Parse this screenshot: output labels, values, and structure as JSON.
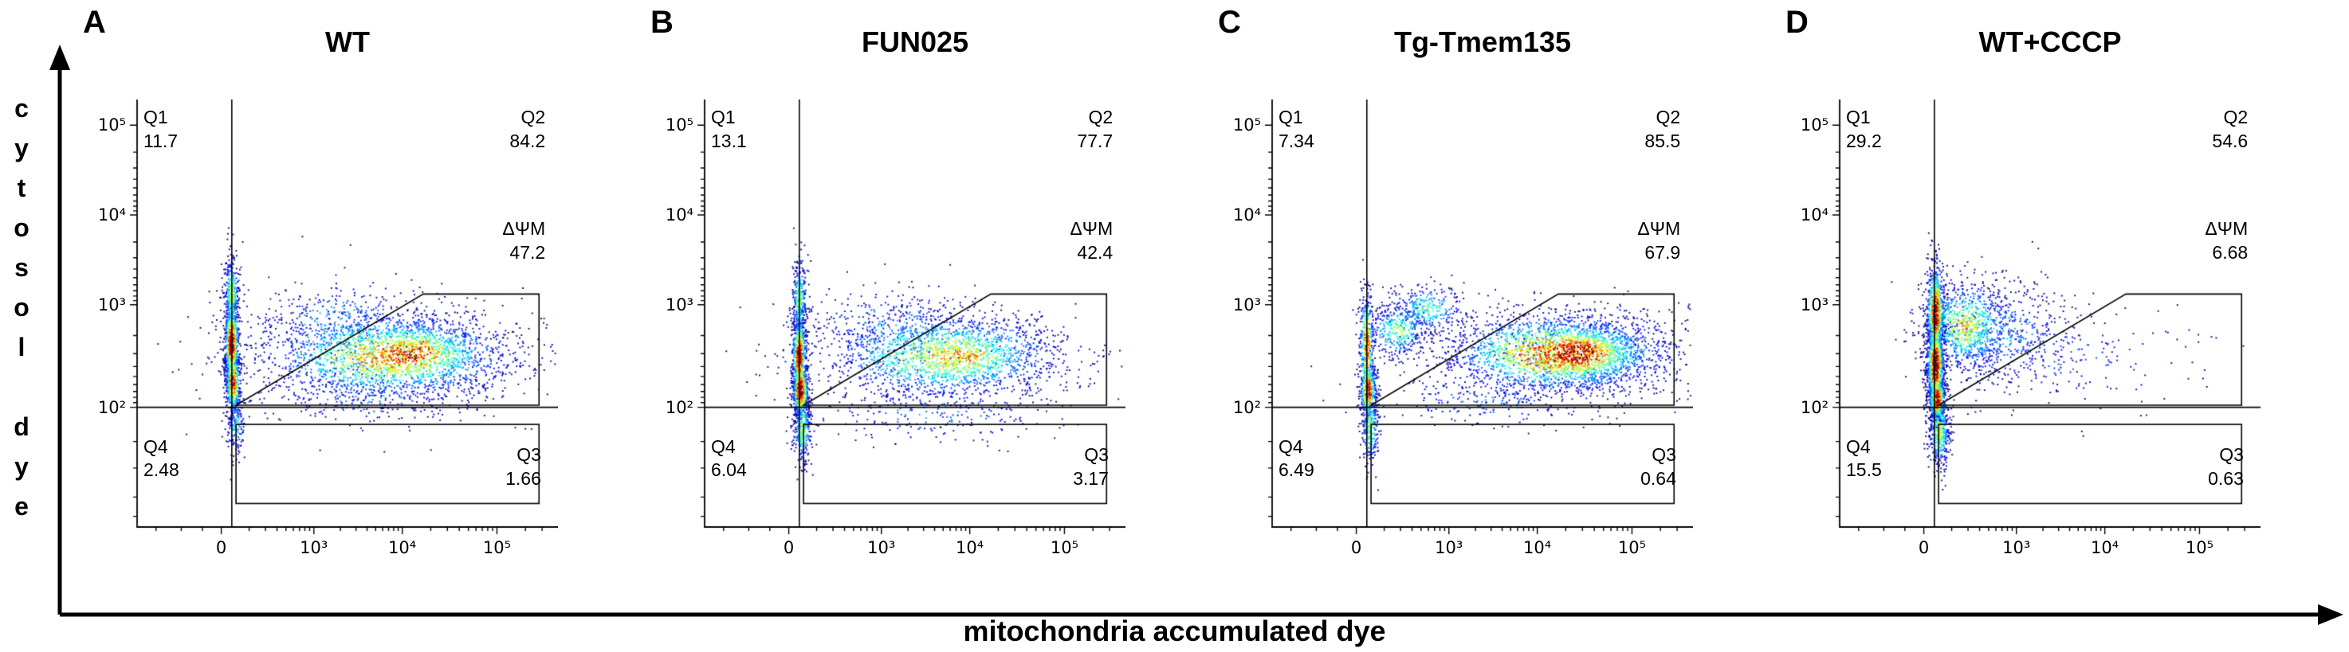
{
  "figure": {
    "x_axis_label": "mitochondria accumulated dye",
    "y_axis_label": "cytosol dye"
  },
  "chart_data": {
    "type": "scatter",
    "subtype": "flow-cytometry-pseudocolor-density",
    "title": "",
    "xlabel": "mitochondria accumulated dye",
    "ylabel": "cytosol dye",
    "x_scale": "biexponential log: 0, 10^3, 10^4, 10^5",
    "y_scale": "biexponential log: 10^2, 10^3, 10^4, 10^5",
    "legend_position": "none",
    "grid": false,
    "axes": {
      "x_ticks": [
        "0",
        "10³",
        "10⁴",
        "10⁵"
      ],
      "y_ticks": [
        "10⁵",
        "10⁴",
        "10³",
        "10²"
      ],
      "x_tick_pos": [
        0.2,
        0.42,
        0.63,
        0.855
      ],
      "y_tick_pos": [
        0.06,
        0.27,
        0.48,
        0.72
      ]
    },
    "gates": {
      "vline_x": 0.225,
      "hline_y": 0.72,
      "psi_gate_polygon": [
        [
          0.235,
          0.715
        ],
        [
          0.68,
          0.455
        ],
        [
          0.955,
          0.455
        ],
        [
          0.955,
          0.715
        ]
      ],
      "q3_box": [
        0.235,
        0.76,
        0.955,
        0.945
      ]
    },
    "panels": [
      {
        "letter": "A",
        "title": "WT",
        "q1": {
          "label": "Q1",
          "value": "11.7"
        },
        "q2": {
          "label": "Q2",
          "value": "84.2"
        },
        "q3": {
          "label": "Q3",
          "value": "1.66"
        },
        "q4": {
          "label": "Q4",
          "value": "2.48"
        },
        "psi_gate": {
          "label": "ΔΨM",
          "value": "47.2"
        },
        "clusters": [
          {
            "n": 350,
            "cx": 0.225,
            "cy": 0.46,
            "sx": 0.009,
            "sy": 0.05,
            "heat": 0.55
          },
          {
            "n": 700,
            "cx": 0.225,
            "cy": 0.57,
            "sx": 0.009,
            "sy": 0.05,
            "heat": 0.95
          },
          {
            "n": 500,
            "cx": 0.228,
            "cy": 0.66,
            "sx": 0.01,
            "sy": 0.04,
            "heat": 0.8
          },
          {
            "n": 150,
            "cx": 0.235,
            "cy": 0.76,
            "sx": 0.012,
            "sy": 0.04,
            "heat": 0.35
          },
          {
            "n": 2200,
            "cx": 0.6,
            "cy": 0.6,
            "sx": 0.16,
            "sy": 0.055,
            "heat": 0.7
          },
          {
            "n": 650,
            "cx": 0.65,
            "cy": 0.595,
            "sx": 0.09,
            "sy": 0.04,
            "heat": 0.9
          },
          {
            "n": 280,
            "cx": 0.48,
            "cy": 0.52,
            "sx": 0.13,
            "sy": 0.05,
            "heat": 0.3
          },
          {
            "n": 160,
            "cx": 0.55,
            "cy": 0.7,
            "sx": 0.15,
            "sy": 0.035,
            "heat": 0.25
          }
        ]
      },
      {
        "letter": "B",
        "title": "FUN025",
        "q1": {
          "label": "Q1",
          "value": "13.1"
        },
        "q2": {
          "label": "Q2",
          "value": "77.7"
        },
        "q3": {
          "label": "Q3",
          "value": "3.17"
        },
        "q4": {
          "label": "Q4",
          "value": "6.04"
        },
        "psi_gate": {
          "label": "ΔΨM",
          "value": "42.4"
        },
        "clusters": [
          {
            "n": 300,
            "cx": 0.225,
            "cy": 0.47,
            "sx": 0.009,
            "sy": 0.05,
            "heat": 0.5
          },
          {
            "n": 650,
            "cx": 0.225,
            "cy": 0.6,
            "sx": 0.009,
            "sy": 0.05,
            "heat": 0.9
          },
          {
            "n": 550,
            "cx": 0.228,
            "cy": 0.68,
            "sx": 0.01,
            "sy": 0.035,
            "heat": 0.95
          },
          {
            "n": 300,
            "cx": 0.233,
            "cy": 0.77,
            "sx": 0.011,
            "sy": 0.045,
            "heat": 0.5
          },
          {
            "n": 1700,
            "cx": 0.57,
            "cy": 0.6,
            "sx": 0.155,
            "sy": 0.055,
            "heat": 0.6
          },
          {
            "n": 450,
            "cx": 0.61,
            "cy": 0.6,
            "sx": 0.09,
            "sy": 0.04,
            "heat": 0.75
          },
          {
            "n": 260,
            "cx": 0.45,
            "cy": 0.53,
            "sx": 0.12,
            "sy": 0.05,
            "heat": 0.3
          },
          {
            "n": 220,
            "cx": 0.55,
            "cy": 0.735,
            "sx": 0.16,
            "sy": 0.035,
            "heat": 0.25
          }
        ]
      },
      {
        "letter": "C",
        "title": "Tg-Tmem135",
        "q1": {
          "label": "Q1",
          "value": "7.34"
        },
        "q2": {
          "label": "Q2",
          "value": "85.5"
        },
        "q3": {
          "label": "Q3",
          "value": "0.64"
        },
        "q4": {
          "label": "Q4",
          "value": "6.49"
        },
        "psi_gate": {
          "label": "ΔΨM",
          "value": "67.9"
        },
        "clusters": [
          {
            "n": 450,
            "cx": 0.225,
            "cy": 0.58,
            "sx": 0.009,
            "sy": 0.07,
            "heat": 0.8
          },
          {
            "n": 400,
            "cx": 0.228,
            "cy": 0.68,
            "sx": 0.01,
            "sy": 0.035,
            "heat": 0.9
          },
          {
            "n": 280,
            "cx": 0.233,
            "cy": 0.77,
            "sx": 0.011,
            "sy": 0.045,
            "heat": 0.5
          },
          {
            "n": 380,
            "cx": 0.3,
            "cy": 0.54,
            "sx": 0.04,
            "sy": 0.035,
            "heat": 0.5
          },
          {
            "n": 300,
            "cx": 0.37,
            "cy": 0.49,
            "sx": 0.045,
            "sy": 0.03,
            "heat": 0.45
          },
          {
            "n": 2300,
            "cx": 0.68,
            "cy": 0.595,
            "sx": 0.14,
            "sy": 0.05,
            "heat": 0.8
          },
          {
            "n": 900,
            "cx": 0.73,
            "cy": 0.595,
            "sx": 0.075,
            "sy": 0.035,
            "heat": 1.0
          },
          {
            "n": 220,
            "cx": 0.52,
            "cy": 0.7,
            "sx": 0.16,
            "sy": 0.04,
            "heat": 0.22
          }
        ]
      },
      {
        "letter": "D",
        "title": "WT+CCCP",
        "q1": {
          "label": "Q1",
          "value": "29.2"
        },
        "q2": {
          "label": "Q2",
          "value": "54.6"
        },
        "q3": {
          "label": "Q3",
          "value": "0.63"
        },
        "q4": {
          "label": "Q4",
          "value": "15.5"
        },
        "psi_gate": {
          "label": "ΔΨM",
          "value": "6.68"
        },
        "clusters": [
          {
            "n": 800,
            "cx": 0.228,
            "cy": 0.5,
            "sx": 0.011,
            "sy": 0.06,
            "heat": 0.9
          },
          {
            "n": 900,
            "cx": 0.228,
            "cy": 0.62,
            "sx": 0.011,
            "sy": 0.05,
            "heat": 1.0
          },
          {
            "n": 450,
            "cx": 0.232,
            "cy": 0.7,
            "sx": 0.011,
            "sy": 0.03,
            "heat": 0.85
          },
          {
            "n": 420,
            "cx": 0.237,
            "cy": 0.78,
            "sx": 0.013,
            "sy": 0.045,
            "heat": 0.55
          },
          {
            "n": 850,
            "cx": 0.3,
            "cy": 0.53,
            "sx": 0.055,
            "sy": 0.055,
            "heat": 0.6
          },
          {
            "n": 450,
            "cx": 0.38,
            "cy": 0.55,
            "sx": 0.09,
            "sy": 0.06,
            "heat": 0.3
          },
          {
            "n": 200,
            "cx": 0.55,
            "cy": 0.6,
            "sx": 0.16,
            "sy": 0.07,
            "heat": 0.18
          }
        ]
      }
    ]
  }
}
